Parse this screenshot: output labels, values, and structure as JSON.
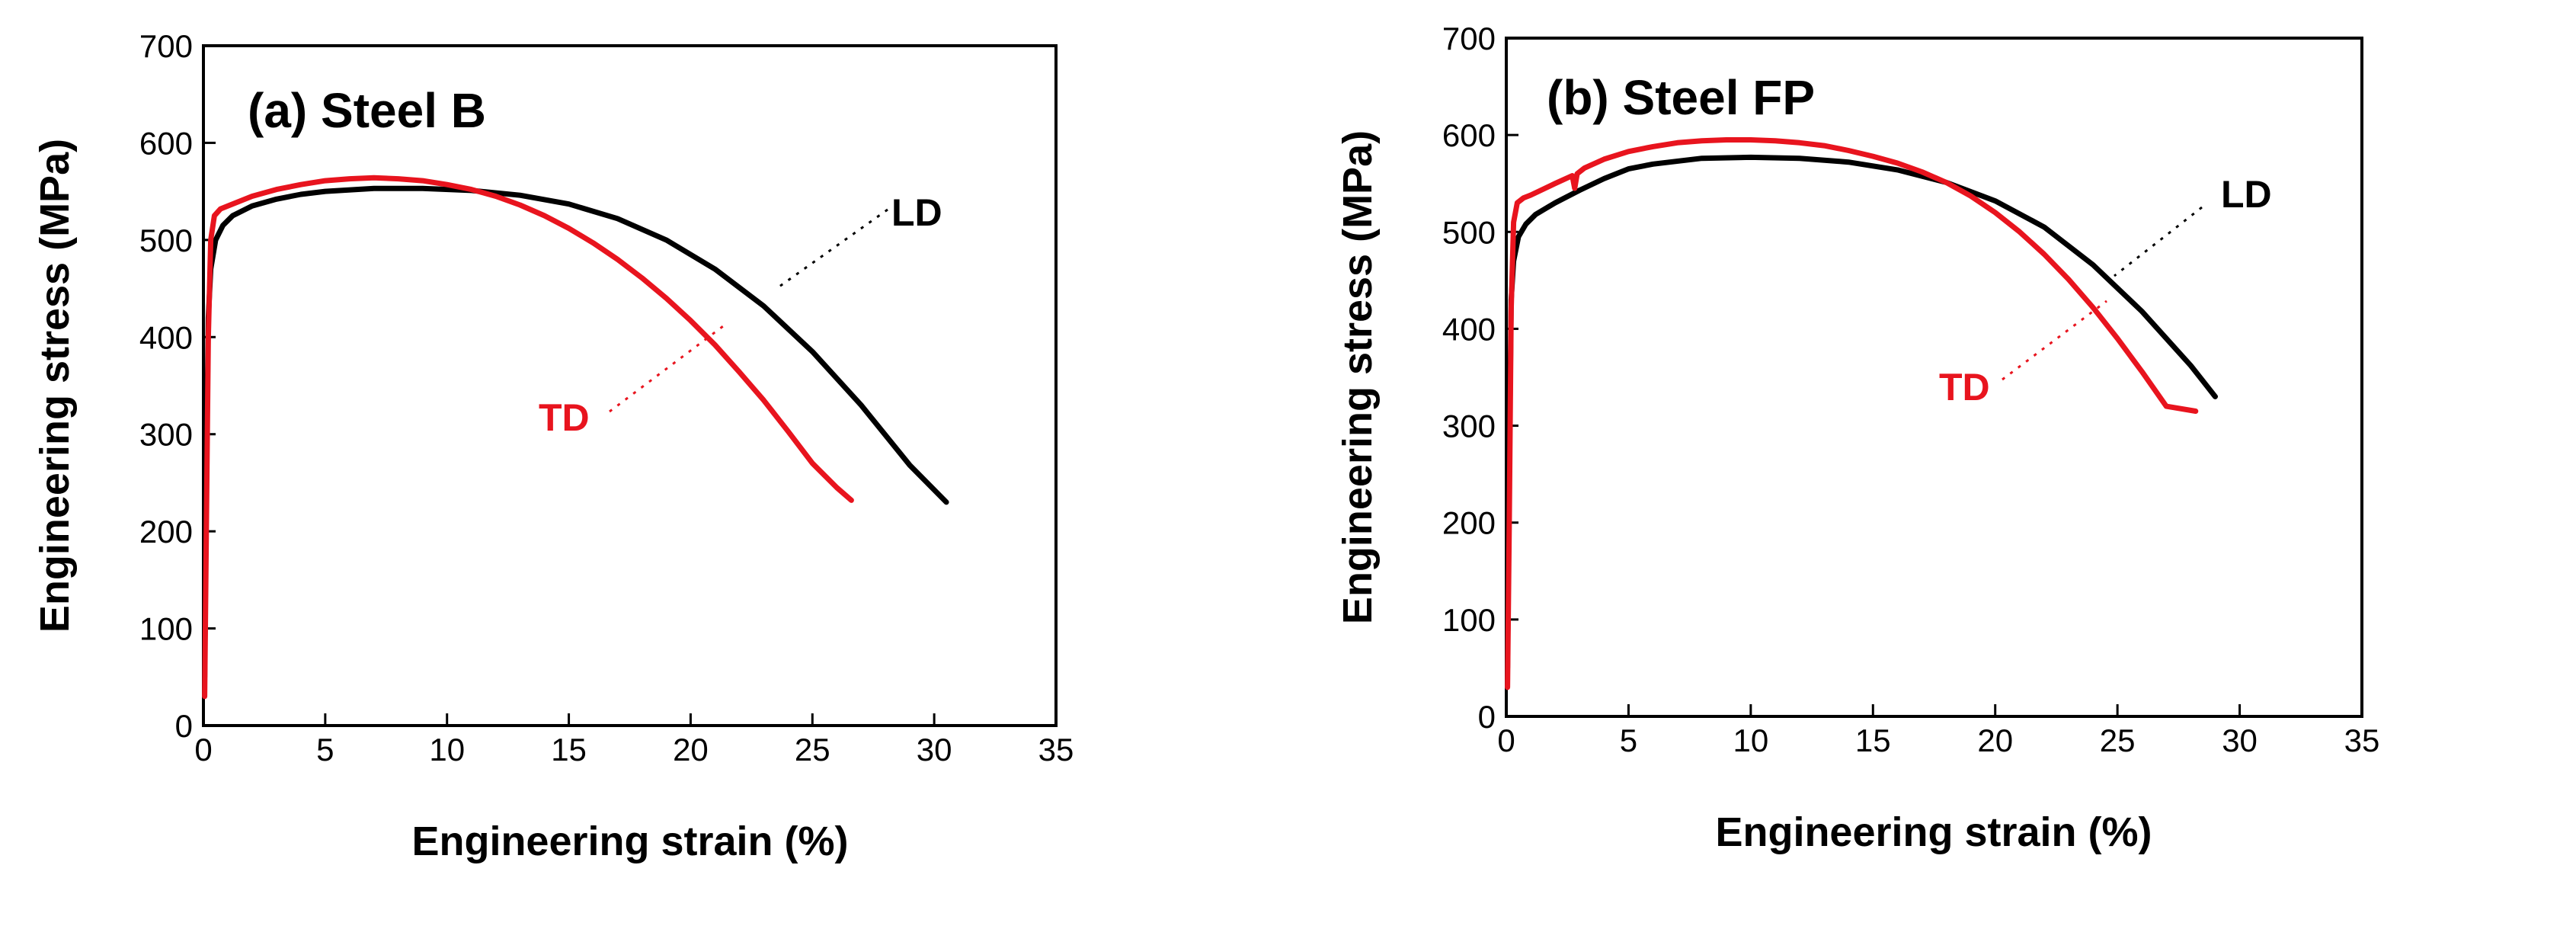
{
  "chart_data": [
    {
      "type": "line",
      "title": "(a) Steel B",
      "xlabel": "Engineering strain (%)",
      "ylabel": "Engineering stress (MPa)",
      "xlim": [
        0,
        35
      ],
      "ylim": [
        0,
        700
      ],
      "xticks": [
        0,
        5,
        10,
        15,
        20,
        25,
        30,
        35
      ],
      "yticks": [
        0,
        100,
        200,
        300,
        400,
        500,
        600,
        700
      ],
      "grid": false,
      "series": [
        {
          "name": "LD",
          "color": "#000000",
          "x": [
            0.05,
            0.12,
            0.2,
            0.3,
            0.5,
            0.8,
            1.2,
            2,
            3,
            4,
            5,
            7,
            9,
            11,
            13,
            15,
            17,
            19,
            21,
            23,
            25,
            27,
            29,
            30.5
          ],
          "y": [
            50,
            250,
            420,
            470,
            500,
            515,
            525,
            535,
            542,
            547,
            550,
            553,
            553,
            551,
            546,
            537,
            522,
            500,
            470,
            432,
            385,
            330,
            268,
            230
          ]
        },
        {
          "name": "TD",
          "color": "#e8141e",
          "x": [
            0.05,
            0.12,
            0.2,
            0.3,
            0.45,
            0.7,
            1,
            2,
            3,
            4,
            5,
            6,
            7,
            8,
            9,
            10,
            11,
            12,
            13,
            14,
            15,
            16,
            17,
            18,
            19,
            20,
            21,
            22,
            23,
            24,
            25,
            26,
            26.6
          ],
          "y": [
            30,
            200,
            400,
            500,
            525,
            532,
            535,
            545,
            552,
            557,
            561,
            563,
            564,
            563,
            561,
            557,
            552,
            545,
            536,
            525,
            512,
            497,
            480,
            461,
            440,
            417,
            392,
            364,
            335,
            303,
            270,
            245,
            232
          ]
        }
      ],
      "annotations": [
        {
          "text": "LD",
          "color": "#000000"
        },
        {
          "text": "TD",
          "color": "#e8141e"
        }
      ]
    },
    {
      "type": "line",
      "title": "(b) Steel FP",
      "xlabel": "Engineering strain (%)",
      "ylabel": "Engineering stress (MPa)",
      "xlim": [
        0,
        35
      ],
      "ylim": [
        0,
        700
      ],
      "xticks": [
        0,
        5,
        10,
        15,
        20,
        25,
        30,
        35
      ],
      "yticks": [
        0,
        100,
        200,
        300,
        400,
        500,
        600,
        700
      ],
      "grid": false,
      "series": [
        {
          "name": "LD",
          "color": "#000000",
          "x": [
            0.05,
            0.12,
            0.2,
            0.3,
            0.5,
            0.8,
            1.2,
            2,
            3,
            4,
            5,
            6,
            8,
            10,
            12,
            14,
            16,
            18,
            20,
            22,
            24,
            26,
            28,
            29
          ],
          "y": [
            50,
            250,
            430,
            470,
            495,
            508,
            518,
            530,
            543,
            555,
            565,
            570,
            576,
            577,
            576,
            572,
            564,
            551,
            532,
            505,
            466,
            418,
            362,
            330
          ]
        },
        {
          "name": "TD",
          "color": "#e8141e",
          "x": [
            0.05,
            0.12,
            0.2,
            0.3,
            0.45,
            0.7,
            1,
            2,
            2.7,
            2.8,
            2.9,
            3.2,
            4,
            5,
            6,
            7,
            8,
            9,
            10,
            11,
            12,
            13,
            14,
            15,
            16,
            17,
            18,
            19,
            20,
            21,
            22,
            23,
            24,
            25,
            26,
            27,
            28.2
          ],
          "y": [
            30,
            200,
            420,
            510,
            530,
            535,
            538,
            550,
            558,
            545,
            560,
            566,
            575,
            583,
            588,
            592,
            594,
            595,
            595,
            594,
            592,
            589,
            584,
            578,
            571,
            562,
            551,
            537,
            520,
            500,
            477,
            451,
            422,
            390,
            356,
            320,
            315
          ]
        }
      ],
      "annotations": [
        {
          "text": "LD",
          "color": "#000000"
        },
        {
          "text": "TD",
          "color": "#e8141e"
        }
      ]
    }
  ]
}
